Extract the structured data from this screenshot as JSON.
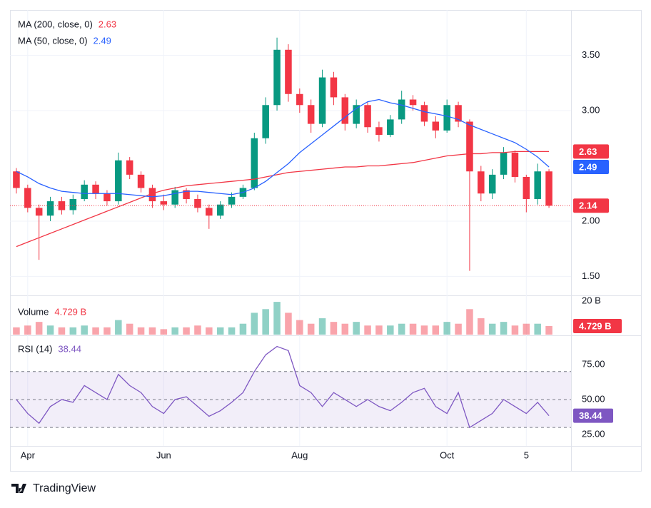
{
  "chart_data": [
    {
      "type": "candlestick",
      "categories": [
        null,
        "Apr",
        null,
        null,
        null,
        null,
        null,
        null,
        null,
        null,
        null,
        null,
        null,
        "Jun",
        null,
        null,
        null,
        null,
        null,
        null,
        null,
        null,
        null,
        null,
        null,
        "Aug",
        null,
        null,
        null,
        null,
        null,
        null,
        null,
        null,
        null,
        null,
        null,
        null,
        "Oct",
        null,
        null,
        null,
        null,
        null,
        null,
        "5",
        null,
        null
      ],
      "open": [
        2.45,
        2.3,
        2.12,
        2.05,
        2.18,
        2.1,
        2.2,
        2.33,
        2.25,
        2.18,
        2.55,
        2.42,
        2.3,
        2.18,
        2.15,
        2.28,
        2.2,
        2.12,
        2.05,
        2.15,
        2.22,
        2.3,
        2.75,
        3.05,
        3.55,
        3.15,
        3.05,
        2.88,
        3.3,
        3.12,
        2.88,
        3.05,
        2.85,
        2.78,
        2.92,
        3.1,
        3.05,
        2.9,
        2.82,
        3.05,
        2.9,
        2.45,
        2.25,
        2.42,
        2.62,
        2.4,
        2.2,
        2.45
      ],
      "high": [
        2.48,
        2.33,
        2.15,
        2.22,
        2.22,
        2.24,
        2.37,
        2.36,
        2.28,
        2.62,
        2.58,
        2.45,
        2.33,
        2.24,
        2.31,
        2.3,
        2.24,
        2.15,
        2.18,
        2.26,
        2.33,
        2.8,
        3.12,
        3.66,
        3.6,
        3.2,
        3.1,
        3.37,
        3.35,
        3.15,
        3.1,
        3.08,
        2.9,
        2.96,
        3.18,
        3.14,
        3.08,
        2.95,
        3.1,
        3.08,
        2.92,
        2.5,
        2.47,
        2.67,
        2.64,
        2.42,
        2.52,
        2.47
      ],
      "low": [
        2.25,
        2.08,
        1.65,
        2.0,
        2.06,
        2.06,
        2.18,
        2.2,
        2.14,
        2.15,
        2.38,
        2.26,
        2.12,
        2.1,
        2.12,
        2.16,
        2.08,
        1.93,
        2.02,
        2.12,
        2.2,
        2.28,
        2.7,
        3.0,
        3.08,
        2.98,
        2.8,
        2.85,
        3.05,
        2.82,
        2.84,
        2.8,
        2.72,
        2.76,
        2.88,
        3.0,
        2.86,
        2.75,
        2.8,
        2.85,
        1.55,
        2.18,
        2.2,
        2.38,
        2.35,
        2.08,
        2.15,
        2.12
      ],
      "close": [
        2.3,
        2.12,
        2.05,
        2.18,
        2.1,
        2.2,
        2.33,
        2.25,
        2.18,
        2.55,
        2.42,
        2.3,
        2.18,
        2.15,
        2.28,
        2.2,
        2.12,
        2.05,
        2.15,
        2.22,
        2.3,
        2.75,
        3.05,
        3.55,
        3.15,
        3.05,
        2.88,
        3.3,
        3.12,
        2.88,
        3.05,
        2.85,
        2.78,
        2.92,
        3.1,
        3.05,
        2.9,
        2.82,
        3.05,
        2.9,
        2.45,
        2.25,
        2.42,
        2.62,
        2.4,
        2.2,
        2.45,
        2.14
      ],
      "up_color": "#089981",
      "down_color": "#f23645",
      "series": [
        {
          "name": "MA (200, close, 0)",
          "color": "#f23645",
          "values": [
            1.77,
            1.81,
            1.85,
            1.89,
            1.93,
            1.97,
            2.01,
            2.05,
            2.09,
            2.13,
            2.17,
            2.21,
            2.25,
            2.28,
            2.3,
            2.32,
            2.33,
            2.34,
            2.35,
            2.36,
            2.37,
            2.38,
            2.4,
            2.42,
            2.44,
            2.45,
            2.46,
            2.47,
            2.48,
            2.49,
            2.49,
            2.5,
            2.5,
            2.51,
            2.52,
            2.53,
            2.55,
            2.57,
            2.59,
            2.6,
            2.61,
            2.61,
            2.62,
            2.62,
            2.63,
            2.63,
            2.63,
            2.63
          ]
        },
        {
          "name": "MA (50, close, 0)",
          "color": "#2962ff",
          "values": [
            2.45,
            2.4,
            2.34,
            2.3,
            2.27,
            2.26,
            2.25,
            2.25,
            2.25,
            2.25,
            2.24,
            2.23,
            2.22,
            2.23,
            2.25,
            2.27,
            2.27,
            2.26,
            2.25,
            2.24,
            2.26,
            2.3,
            2.36,
            2.44,
            2.52,
            2.62,
            2.7,
            2.78,
            2.86,
            2.94,
            3.02,
            3.08,
            3.1,
            3.07,
            3.05,
            3.02,
            2.99,
            2.97,
            2.95,
            2.92,
            2.87,
            2.83,
            2.79,
            2.75,
            2.71,
            2.65,
            2.58,
            2.49
          ]
        }
      ],
      "ylim": [
        1.335,
        3.91
      ],
      "yticks": [
        {
          "value": 1.5,
          "label": "1.50"
        },
        {
          "value": 2,
          "label": "2.00"
        },
        {
          "value": 3,
          "label": "3.00"
        },
        {
          "value": 3.5,
          "label": "3.50"
        }
      ]
    },
    {
      "type": "bar",
      "name": "Volume",
      "values": [
        4,
        5,
        7,
        5,
        4,
        4,
        5,
        4,
        4,
        8,
        6,
        4,
        4,
        3,
        4,
        4,
        5,
        4,
        4,
        4,
        6,
        12,
        14,
        18,
        12,
        8,
        6,
        9,
        7,
        6,
        7,
        5,
        5,
        5,
        6,
        6,
        5,
        5,
        7,
        6,
        14,
        9,
        6,
        7,
        5,
        6,
        6,
        4.729
      ],
      "last_value_label": "4.729 B",
      "ylim": [
        0,
        20
      ],
      "yticks": [
        {
          "value": 20,
          "label": "20 B"
        }
      ]
    },
    {
      "type": "line",
      "name": "RSI (14)",
      "color": "#7e57c2",
      "values": [
        50,
        40,
        33,
        45,
        50,
        48,
        60,
        55,
        50,
        68,
        60,
        55,
        45,
        40,
        50,
        52,
        45,
        38,
        42,
        48,
        55,
        70,
        82,
        88,
        85,
        60,
        55,
        45,
        55,
        50,
        45,
        50,
        45,
        42,
        48,
        55,
        58,
        45,
        40,
        55,
        30,
        35,
        40,
        50,
        45,
        40,
        48,
        38.44
      ],
      "levels": [
        70,
        50,
        30
      ],
      "ylim": [
        16.8,
        93.9
      ],
      "yticks": [
        {
          "value": 25,
          "label": "25.00"
        },
        {
          "value": 50,
          "label": "50.00"
        },
        {
          "value": 75,
          "label": "75.00"
        }
      ]
    }
  ],
  "brand": "TradingView"
}
